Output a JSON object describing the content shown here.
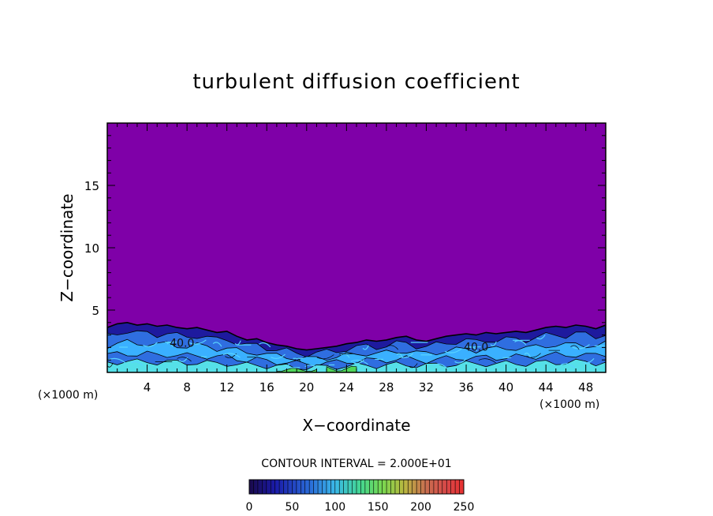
{
  "chart_data": {
    "type": "heatmap",
    "title": "turbulent diffusion coefficient",
    "xlabel": "X−coordinate",
    "ylabel": "Z−coordinate",
    "x_unit": "(×1000 m)",
    "y_unit": "(×1000 m)",
    "xlim": [
      0,
      50
    ],
    "ylim": [
      0,
      20
    ],
    "x_ticks": [
      4,
      8,
      12,
      16,
      20,
      24,
      28,
      32,
      36,
      40,
      44,
      48
    ],
    "y_ticks": [
      5,
      10,
      15
    ],
    "background_value": 0,
    "contour_interval_label": "CONTOUR INTERVAL = 2.000E+01",
    "contour_labels": [
      {
        "text": "40.0",
        "x": 7.5,
        "z": 2.3
      },
      {
        "text": "40.0",
        "x": 37.0,
        "z": 2.0
      }
    ],
    "colorbar": {
      "min": 0,
      "max": 250,
      "tick_values": [
        0,
        50,
        100,
        150,
        200,
        250
      ],
      "tick_labels": [
        "0",
        "50",
        "100",
        "150",
        "200",
        "250"
      ]
    },
    "boundary_layer_top": [
      {
        "x": 0,
        "z": 3.6
      },
      {
        "x": 1,
        "z": 3.9
      },
      {
        "x": 2,
        "z": 4.0
      },
      {
        "x": 3,
        "z": 3.8
      },
      {
        "x": 4,
        "z": 3.9
      },
      {
        "x": 5,
        "z": 3.7
      },
      {
        "x": 6,
        "z": 3.8
      },
      {
        "x": 7,
        "z": 3.6
      },
      {
        "x": 8,
        "z": 3.5
      },
      {
        "x": 9,
        "z": 3.6
      },
      {
        "x": 10,
        "z": 3.4
      },
      {
        "x": 11,
        "z": 3.2
      },
      {
        "x": 12,
        "z": 3.3
      },
      {
        "x": 13,
        "z": 2.9
      },
      {
        "x": 14,
        "z": 2.6
      },
      {
        "x": 15,
        "z": 2.7
      },
      {
        "x": 16,
        "z": 2.4
      },
      {
        "x": 17,
        "z": 2.2
      },
      {
        "x": 18,
        "z": 2.1
      },
      {
        "x": 19,
        "z": 1.9
      },
      {
        "x": 20,
        "z": 1.8
      },
      {
        "x": 21,
        "z": 1.9
      },
      {
        "x": 22,
        "z": 2.0
      },
      {
        "x": 23,
        "z": 2.1
      },
      {
        "x": 24,
        "z": 2.3
      },
      {
        "x": 25,
        "z": 2.4
      },
      {
        "x": 26,
        "z": 2.6
      },
      {
        "x": 27,
        "z": 2.5
      },
      {
        "x": 28,
        "z": 2.6
      },
      {
        "x": 29,
        "z": 2.8
      },
      {
        "x": 30,
        "z": 2.9
      },
      {
        "x": 31,
        "z": 2.6
      },
      {
        "x": 32,
        "z": 2.5
      },
      {
        "x": 33,
        "z": 2.7
      },
      {
        "x": 34,
        "z": 2.9
      },
      {
        "x": 35,
        "z": 3.0
      },
      {
        "x": 36,
        "z": 3.1
      },
      {
        "x": 37,
        "z": 3.0
      },
      {
        "x": 38,
        "z": 3.2
      },
      {
        "x": 39,
        "z": 3.1
      },
      {
        "x": 40,
        "z": 3.2
      },
      {
        "x": 41,
        "z": 3.3
      },
      {
        "x": 42,
        "z": 3.2
      },
      {
        "x": 43,
        "z": 3.4
      },
      {
        "x": 44,
        "z": 3.6
      },
      {
        "x": 45,
        "z": 3.7
      },
      {
        "x": 46,
        "z": 3.6
      },
      {
        "x": 47,
        "z": 3.8
      },
      {
        "x": 48,
        "z": 3.7
      },
      {
        "x": 49,
        "z": 3.5
      },
      {
        "x": 50,
        "z": 3.8
      }
    ],
    "colors": {
      "background": "#7f00a8",
      "low": "#1e1a9e",
      "mid_low": "#2f6ee0",
      "mid": "#3ab0ff",
      "mid_high": "#55e0e8",
      "high": "#4fd65a"
    }
  }
}
